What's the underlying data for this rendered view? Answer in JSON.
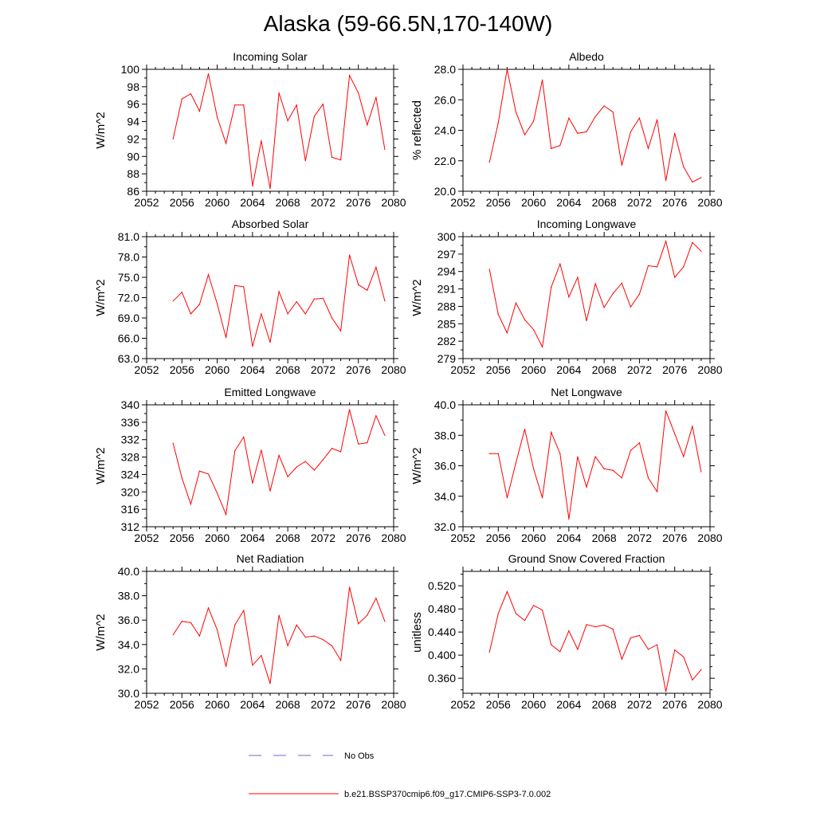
{
  "title": "Alaska (59-66.5N,170-140W)",
  "legend": {
    "obs_label": "No Obs",
    "obs_color": "#6a6ad8",
    "model_label": "b.e21.BSSP370cmip6.f09_g17.CMIP6-SSP3-7.0.002",
    "model_color": "#ff0000"
  },
  "chart_data": [
    {
      "type": "line",
      "title": "Incoming Solar",
      "ylabel": "W/m^2",
      "xlabel": "",
      "xlim": [
        2052,
        2080
      ],
      "xticks": [
        "2052",
        "2056",
        "2060",
        "2064",
        "2068",
        "2072",
        "2076",
        "2080"
      ],
      "ylim": [
        86,
        100
      ],
      "yticks": [
        "86",
        "88",
        "90",
        "92",
        "94",
        "96",
        "98",
        "100"
      ],
      "x": [
        2055,
        2056,
        2057,
        2058,
        2059,
        2060,
        2061,
        2062,
        2063,
        2064,
        2065,
        2066,
        2067,
        2068,
        2069,
        2070,
        2071,
        2072,
        2073,
        2074,
        2075,
        2076,
        2077,
        2078,
        2079
      ],
      "series": [
        {
          "name": "b.e21.BSSP370cmip6.f09_g17.CMIP6-SSP3-7.0.002",
          "values": [
            92.0,
            96.6,
            97.2,
            95.2,
            99.5,
            94.5,
            91.5,
            95.9,
            95.9,
            86.6,
            91.8,
            86.3,
            97.3,
            94.1,
            95.9,
            89.5,
            94.6,
            96.0,
            89.9,
            89.6,
            99.3,
            97.3,
            93.6,
            96.8,
            90.8
          ]
        }
      ]
    },
    {
      "type": "line",
      "title": "Albedo",
      "ylabel": "% reflected",
      "xlabel": "",
      "xlim": [
        2052,
        2080
      ],
      "xticks": [
        "2052",
        "2056",
        "2060",
        "2064",
        "2068",
        "2072",
        "2076",
        "2080"
      ],
      "ylim": [
        20,
        28
      ],
      "yticks": [
        "20.0",
        "22.0",
        "24.0",
        "26.0",
        "28.0"
      ],
      "x": [
        2055,
        2056,
        2057,
        2058,
        2059,
        2060,
        2061,
        2062,
        2063,
        2064,
        2065,
        2066,
        2067,
        2068,
        2069,
        2070,
        2071,
        2072,
        2073,
        2074,
        2075,
        2076,
        2077,
        2078,
        2079
      ],
      "series": [
        {
          "name": "b.e21.BSSP370cmip6.f09_g17.CMIP6-SSP3-7.0.002",
          "values": [
            21.9,
            24.5,
            28.0,
            25.2,
            23.7,
            24.6,
            27.3,
            22.8,
            23.0,
            24.8,
            23.8,
            23.9,
            24.9,
            25.6,
            25.2,
            21.7,
            23.9,
            24.8,
            22.8,
            24.7,
            20.7,
            23.8,
            21.6,
            20.6,
            20.9
          ]
        }
      ]
    },
    {
      "type": "line",
      "title": "Absorbed Solar",
      "ylabel": "W/m^2",
      "xlabel": "",
      "xlim": [
        2052,
        2080
      ],
      "xticks": [
        "2052",
        "2056",
        "2060",
        "2064",
        "2068",
        "2072",
        "2076",
        "2080"
      ],
      "ylim": [
        63,
        81
      ],
      "yticks": [
        "63.0",
        "66.0",
        "69.0",
        "72.0",
        "75.0",
        "78.0",
        "81.0"
      ],
      "x": [
        2055,
        2056,
        2057,
        2058,
        2059,
        2060,
        2061,
        2062,
        2063,
        2064,
        2065,
        2066,
        2067,
        2068,
        2069,
        2070,
        2071,
        2072,
        2073,
        2074,
        2075,
        2076,
        2077,
        2078,
        2079
      ],
      "series": [
        {
          "name": "b.e21.BSSP370cmip6.f09_g17.CMIP6-SSP3-7.0.002",
          "values": [
            71.5,
            72.8,
            69.6,
            71.0,
            75.4,
            71.1,
            66.1,
            73.8,
            73.6,
            64.8,
            69.6,
            65.4,
            72.9,
            69.6,
            71.4,
            69.6,
            71.8,
            71.9,
            69.0,
            67.1,
            78.3,
            73.9,
            73.1,
            76.5,
            71.5
          ]
        }
      ]
    },
    {
      "type": "line",
      "title": "Incoming Longwave",
      "ylabel": "W/m^2",
      "xlabel": "",
      "xlim": [
        2052,
        2080
      ],
      "xticks": [
        "2052",
        "2056",
        "2060",
        "2064",
        "2068",
        "2072",
        "2076",
        "2080"
      ],
      "ylim": [
        279,
        300
      ],
      "yticks": [
        "279",
        "282",
        "285",
        "288",
        "291",
        "294",
        "297",
        "300"
      ],
      "x": [
        2055,
        2056,
        2057,
        2058,
        2059,
        2060,
        2061,
        2062,
        2063,
        2064,
        2065,
        2066,
        2067,
        2068,
        2069,
        2070,
        2071,
        2072,
        2073,
        2074,
        2075,
        2076,
        2077,
        2078,
        2079
      ],
      "series": [
        {
          "name": "b.e21.BSSP370cmip6.f09_g17.CMIP6-SSP3-7.0.002",
          "values": [
            294.4,
            286.6,
            283.4,
            288.6,
            285.7,
            284.0,
            281.0,
            291.3,
            295.3,
            289.6,
            293.0,
            285.5,
            291.9,
            287.8,
            290.2,
            292.0,
            287.9,
            290.1,
            295.0,
            294.8,
            299.2,
            293.0,
            294.8,
            299.0,
            297.5
          ]
        }
      ]
    },
    {
      "type": "line",
      "title": "Emitted Longwave",
      "ylabel": "W/m^2",
      "xlabel": "",
      "xlim": [
        2052,
        2080
      ],
      "xticks": [
        "2052",
        "2056",
        "2060",
        "2064",
        "2068",
        "2072",
        "2076",
        "2080"
      ],
      "ylim": [
        312,
        340
      ],
      "yticks": [
        "312",
        "316",
        "320",
        "324",
        "328",
        "332",
        "336",
        "340"
      ],
      "x": [
        2055,
        2056,
        2057,
        2058,
        2059,
        2060,
        2061,
        2062,
        2063,
        2064,
        2065,
        2066,
        2067,
        2068,
        2069,
        2070,
        2071,
        2072,
        2073,
        2074,
        2075,
        2076,
        2077,
        2078,
        2079
      ],
      "series": [
        {
          "name": "b.e21.BSSP370cmip6.f09_g17.CMIP6-SSP3-7.0.002",
          "values": [
            331.2,
            323.2,
            317.2,
            324.8,
            324.1,
            319.7,
            314.8,
            329.4,
            332.6,
            322.0,
            329.6,
            320.2,
            328.4,
            323.5,
            325.7,
            327.0,
            325.0,
            327.4,
            330.0,
            329.2,
            338.9,
            331.0,
            331.3,
            337.5,
            333.0
          ]
        }
      ]
    },
    {
      "type": "line",
      "title": "Net Longwave",
      "ylabel": "W/m^2",
      "xlabel": "",
      "xlim": [
        2052,
        2080
      ],
      "xticks": [
        "2052",
        "2056",
        "2060",
        "2064",
        "2068",
        "2072",
        "2076",
        "2080"
      ],
      "ylim": [
        32,
        40
      ],
      "yticks": [
        "32.0",
        "34.0",
        "36.0",
        "38.0",
        "40.0"
      ],
      "x": [
        2055,
        2056,
        2057,
        2058,
        2059,
        2060,
        2061,
        2062,
        2063,
        2064,
        2065,
        2066,
        2067,
        2068,
        2069,
        2070,
        2071,
        2072,
        2073,
        2074,
        2075,
        2076,
        2077,
        2078,
        2079
      ],
      "series": [
        {
          "name": "b.e21.BSSP370cmip6.f09_g17.CMIP6-SSP3-7.0.002",
          "values": [
            36.8,
            36.8,
            33.9,
            36.2,
            38.4,
            35.8,
            33.9,
            38.2,
            36.8,
            32.5,
            36.6,
            34.6,
            36.6,
            35.8,
            35.7,
            35.2,
            37.0,
            37.5,
            35.2,
            34.3,
            39.6,
            38.1,
            36.6,
            38.6,
            35.6
          ]
        }
      ]
    },
    {
      "type": "line",
      "title": "Net Radiation",
      "ylabel": "W/m^2",
      "xlabel": "",
      "xlim": [
        2052,
        2080
      ],
      "xticks": [
        "2052",
        "2056",
        "2060",
        "2064",
        "2068",
        "2072",
        "2076",
        "2080"
      ],
      "ylim": [
        30,
        40
      ],
      "yticks": [
        "30.0",
        "32.0",
        "34.0",
        "36.0",
        "38.0",
        "40.0"
      ],
      "x": [
        2055,
        2056,
        2057,
        2058,
        2059,
        2060,
        2061,
        2062,
        2063,
        2064,
        2065,
        2066,
        2067,
        2068,
        2069,
        2070,
        2071,
        2072,
        2073,
        2074,
        2075,
        2076,
        2077,
        2078,
        2079
      ],
      "series": [
        {
          "name": "b.e21.BSSP370cmip6.f09_g17.CMIP6-SSP3-7.0.002",
          "values": [
            34.8,
            35.9,
            35.8,
            34.7,
            37.0,
            35.2,
            32.2,
            35.6,
            36.8,
            32.3,
            33.1,
            30.8,
            36.4,
            33.9,
            35.6,
            34.6,
            34.7,
            34.4,
            33.9,
            32.7,
            38.7,
            35.7,
            36.4,
            37.8,
            35.9
          ]
        }
      ]
    },
    {
      "type": "line",
      "title": "Ground Snow Covered Fraction",
      "ylabel": "unitless",
      "xlabel": "",
      "xlim": [
        2052,
        2080
      ],
      "xticks": [
        "2052",
        "2056",
        "2060",
        "2064",
        "2068",
        "2072",
        "2076",
        "2080"
      ],
      "ylim": [
        0.334,
        0.545
      ],
      "yticks": [
        "0.360",
        "0.400",
        "0.440",
        "0.480",
        "0.520"
      ],
      "x": [
        2055,
        2056,
        2057,
        2058,
        2059,
        2060,
        2061,
        2062,
        2063,
        2064,
        2065,
        2066,
        2067,
        2068,
        2069,
        2070,
        2071,
        2072,
        2073,
        2074,
        2075,
        2076,
        2077,
        2078,
        2079
      ],
      "series": [
        {
          "name": "b.e21.BSSP370cmip6.f09_g17.CMIP6-SSP3-7.0.002",
          "values": [
            0.405,
            0.472,
            0.51,
            0.472,
            0.46,
            0.486,
            0.478,
            0.418,
            0.406,
            0.442,
            0.41,
            0.453,
            0.449,
            0.452,
            0.445,
            0.393,
            0.43,
            0.434,
            0.41,
            0.418,
            0.337,
            0.409,
            0.397,
            0.357,
            0.375
          ]
        }
      ]
    }
  ]
}
